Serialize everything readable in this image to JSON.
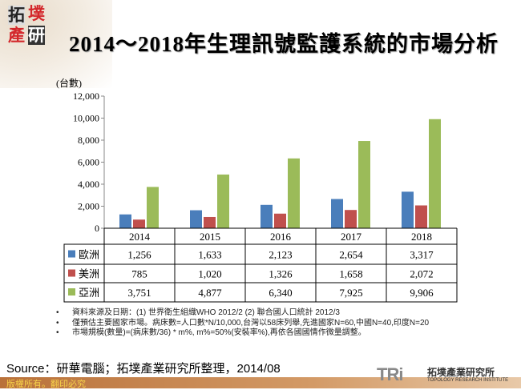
{
  "header": {
    "logo_text": "拓墣產研",
    "title": "2014～2018年生理訊號監護系統的市場分析"
  },
  "chart_data": {
    "type": "bar",
    "title": "2014～2018年生理訊號監護系統的市場分析",
    "ylabel": "(台數)",
    "ylim": [
      0,
      12000
    ],
    "yticks": [
      "0",
      "2,000",
      "4,000",
      "6,000",
      "8,000",
      "10,000",
      "12,000"
    ],
    "grid": false,
    "legend": "data-table",
    "categories": [
      "2014",
      "2015",
      "2016",
      "2017",
      "2018"
    ],
    "series": [
      {
        "name": "歐洲",
        "color": "#4a7ebb",
        "values": [
          1256,
          1633,
          2123,
          2654,
          3317
        ],
        "labels": [
          "1,256",
          "1,633",
          "2,123",
          "2,654",
          "3,317"
        ]
      },
      {
        "name": "美洲",
        "color": "#c0504d",
        "values": [
          785,
          1020,
          1326,
          1658,
          2072
        ],
        "labels": [
          "785",
          "1,020",
          "1,326",
          "1,658",
          "2,072"
        ]
      },
      {
        "name": "亞洲",
        "color": "#9bbb59",
        "values": [
          3751,
          4877,
          6340,
          7925,
          9906
        ],
        "labels": [
          "3,751",
          "4,877",
          "6,340",
          "7,925",
          "9,906"
        ]
      }
    ]
  },
  "notes": [
    "資料來源及日期：(1) 世界衛生組織WHO 2012/2  (2) 聯合國人口統計 2012/3",
    "僅預估主要國家市場。病床數=人口數*N/10,000,台灣以58床列舉,先進國家N=60,中國N=40,印度N=20",
    "市場規模(數量)=(病床數/36) * m%, m%=50%(安裝率%),再依各國國情作微量調整。"
  ],
  "source": "Source：研華電腦；拓墣產業研究所整理，2014/08",
  "footer": {
    "copyright": "版權所有。翻印必究",
    "org_logo": "TRi",
    "org_cn": "拓墣產業研究所",
    "org_en": "TOPOLOGY RESEARCH INSTITUTE"
  }
}
